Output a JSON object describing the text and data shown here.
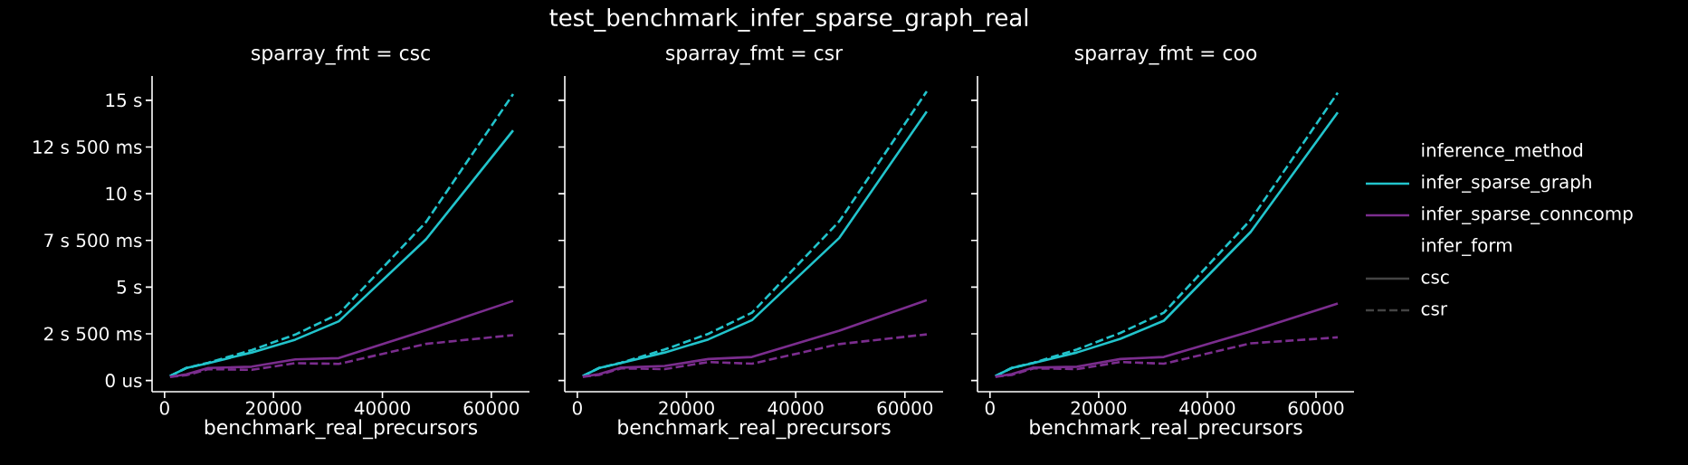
{
  "chart_data": [
    {
      "type": "line",
      "subtitle": "sparray_fmt = csc",
      "xlabel": "benchmark_real_precursors",
      "x": [
        1000,
        4000,
        8000,
        16000,
        24000,
        32000,
        48000,
        64000
      ],
      "series": [
        {
          "color": "#22c4cc",
          "line_style": "solid",
          "values": [
            0.24,
            0.67,
            0.93,
            1.5,
            2.19,
            3.17,
            7.56,
            13.39
          ]
        },
        {
          "color": "#22c4cc",
          "line_style": "dashed",
          "values": [
            0.24,
            0.67,
            0.95,
            1.63,
            2.46,
            3.57,
            8.48,
            15.33
          ]
        },
        {
          "color": "#7b2d8e",
          "line_style": "solid",
          "values": [
            0.2,
            0.33,
            0.67,
            0.74,
            1.13,
            1.2,
            2.69,
            4.26
          ]
        },
        {
          "color": "#7b2d8e",
          "line_style": "dashed",
          "values": [
            0.2,
            0.28,
            0.61,
            0.57,
            0.93,
            0.89,
            1.96,
            2.43
          ]
        }
      ],
      "xlim": [
        -2300,
        67000
      ],
      "ylim": [
        -0.6,
        16.3
      ],
      "xticks": [
        0,
        20000,
        40000,
        60000
      ],
      "yticks": [
        {
          "value": 0,
          "label": "0 us"
        },
        {
          "value": 2.5,
          "label": "2 s 500 ms"
        },
        {
          "value": 5,
          "label": "5 s"
        },
        {
          "value": 7.5,
          "label": "7 s 500 ms"
        },
        {
          "value": 10,
          "label": "10 s"
        },
        {
          "value": 12.5,
          "label": "12 s 500 ms"
        },
        {
          "value": 15,
          "label": "15 s"
        }
      ],
      "grid": false
    },
    {
      "type": "line",
      "title": "test_benchmark_infer_sparse_graph_real",
      "subtitle": "sparray_fmt = csr",
      "xlabel": "benchmark_real_precursors",
      "x": [
        1000,
        4000,
        8000,
        16000,
        24000,
        32000,
        48000,
        64000
      ],
      "series": [
        {
          "color": "#22c4cc",
          "line_style": "solid",
          "values": [
            0.24,
            0.67,
            0.94,
            1.5,
            2.2,
            3.23,
            7.64,
            14.4
          ]
        },
        {
          "color": "#22c4cc",
          "line_style": "dashed",
          "values": [
            0.24,
            0.67,
            0.95,
            1.66,
            2.5,
            3.63,
            8.53,
            15.48
          ]
        },
        {
          "color": "#7b2d8e",
          "line_style": "solid",
          "values": [
            0.21,
            0.34,
            0.69,
            0.78,
            1.15,
            1.26,
            2.67,
            4.3
          ]
        },
        {
          "color": "#7b2d8e",
          "line_style": "dashed",
          "values": [
            0.2,
            0.3,
            0.65,
            0.61,
            0.99,
            0.9,
            1.95,
            2.47
          ]
        }
      ],
      "xlim": [
        -2300,
        67000
      ],
      "ylim": [
        -0.6,
        16.3
      ],
      "xticks": [
        0,
        20000,
        40000,
        60000
      ],
      "yticks": [
        {
          "value": 0,
          "label": null
        },
        {
          "value": 2.5,
          "label": null
        },
        {
          "value": 5,
          "label": null
        },
        {
          "value": 7.5,
          "label": null
        },
        {
          "value": 10,
          "label": null
        },
        {
          "value": 12.5,
          "label": null
        },
        {
          "value": 15,
          "label": null
        }
      ],
      "tick_labels": "x",
      "grid": false
    },
    {
      "type": "line",
      "subtitle": "sparray_fmt = coo",
      "xlabel": "benchmark_real_precursors",
      "legend_title": "inference_method",
      "annotations": [
        "infer_form",
        "csc",
        "csr"
      ],
      "x": [
        1000,
        4000,
        8000,
        16000,
        24000,
        32000,
        48000,
        64000
      ],
      "series": [
        {
          "name": "infer_sparse_graph",
          "color": "#22c4cc",
          "line_style": "solid",
          "values": [
            0.24,
            0.67,
            0.94,
            1.5,
            2.23,
            3.2,
            7.96,
            14.35
          ]
        },
        {
          "color": "#22c4cc",
          "line_style": "dashed",
          "values": [
            0.24,
            0.67,
            0.95,
            1.66,
            2.55,
            3.63,
            8.61,
            15.4
          ]
        },
        {
          "name": "infer_sparse_conncomp",
          "color": "#7b2d8e",
          "line_style": "solid",
          "values": [
            0.21,
            0.34,
            0.69,
            0.74,
            1.15,
            1.26,
            2.63,
            4.12
          ]
        },
        {
          "color": "#7b2d8e",
          "line_style": "dashed",
          "values": [
            0.2,
            0.3,
            0.65,
            0.61,
            0.99,
            0.9,
            1.99,
            2.31
          ]
        }
      ],
      "xlim": [
        -2300,
        67000
      ],
      "ylim": [
        -0.6,
        16.3
      ],
      "xticks": [
        0,
        20000,
        40000,
        60000
      ],
      "yticks": [
        {
          "value": 0,
          "label": null
        },
        {
          "value": 2.5,
          "label": null
        },
        {
          "value": 5,
          "label": null
        },
        {
          "value": 7.5,
          "label": null
        },
        {
          "value": 10,
          "label": null
        },
        {
          "value": 12.5,
          "label": null
        },
        {
          "value": 15,
          "label": null
        }
      ],
      "tick_labels": "x",
      "grid": false,
      "legend": "right"
    }
  ]
}
